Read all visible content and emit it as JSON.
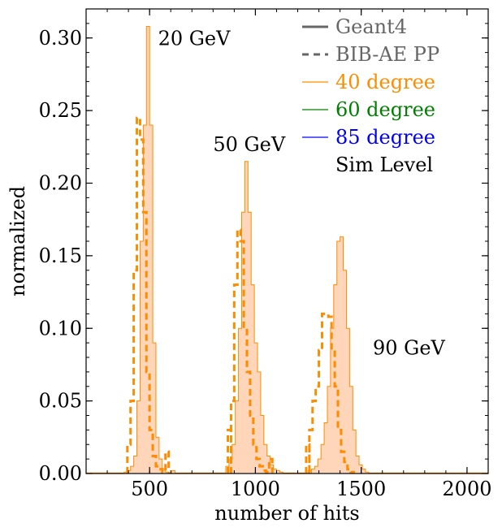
{
  "chart_data": {
    "type": "histogram",
    "title": "",
    "xlabel": "number of hits",
    "ylabel": "normalized",
    "xlim": [
      200,
      2100
    ],
    "ylim": [
      0,
      0.32
    ],
    "xticks": [
      500,
      1000,
      1500,
      2000
    ],
    "xtick_labels": [
      "500",
      "1000",
      "1500",
      "2000"
    ],
    "yticks": [
      0.0,
      0.05,
      0.1,
      0.15,
      0.2,
      0.25,
      0.3
    ],
    "ytick_labels": [
      "0.00",
      "0.05",
      "0.10",
      "0.15",
      "0.20",
      "0.25",
      "0.30"
    ],
    "grid": false,
    "legend_position": "top-right",
    "annotations": [
      {
        "text": "20 GeV",
        "x": 540,
        "y": 0.295
      },
      {
        "text": "50 GeV",
        "x": 800,
        "y": 0.222
      },
      {
        "text": "90 GeV",
        "x": 1555,
        "y": 0.082
      }
    ],
    "legend": [
      {
        "label": "Geant4",
        "style": "solid",
        "color": "#666666"
      },
      {
        "label": "BIB-AE PP",
        "style": "dashed",
        "color": "#666666"
      },
      {
        "label": "40 degree",
        "style": "solid",
        "color": "#ff8c00"
      },
      {
        "label": "60 degree",
        "style": "solid",
        "color": "#008000"
      },
      {
        "label": "85 degree",
        "style": "solid",
        "color": "#0000ff"
      },
      {
        "label": "Sim Level",
        "style": "none",
        "color": "#000000"
      }
    ],
    "series": [
      {
        "name": "Geant4 40 degree",
        "style": "filled-step",
        "color": "#ff8c00",
        "fill": "#ffd6ba",
        "bin_edges": [
          380,
          395,
          410,
          425,
          440,
          455,
          470,
          485,
          500,
          515,
          530,
          545,
          560,
          575,
          590,
          605,
          860,
          875,
          890,
          905,
          920,
          935,
          950,
          965,
          980,
          995,
          1010,
          1025,
          1040,
          1055,
          1070,
          1085,
          1100,
          1115,
          1130,
          1250,
          1265,
          1280,
          1295,
          1310,
          1325,
          1340,
          1355,
          1370,
          1385,
          1400,
          1415,
          1430,
          1445,
          1460,
          1475,
          1490,
          1505,
          1520,
          1535,
          1550
        ],
        "values": [
          0.001,
          0.002,
          0.005,
          0.012,
          0.05,
          0.16,
          0.24,
          0.308,
          0.24,
          0.09,
          0.025,
          0.01,
          0.003,
          0.001,
          0.0005,
          0.002,
          0.005,
          0.01,
          0.02,
          0.05,
          0.1,
          0.18,
          0.215,
          0.18,
          0.13,
          0.09,
          0.07,
          0.04,
          0.02,
          0.012,
          0.006,
          0.003,
          0.002,
          0.001,
          0.0,
          0.002,
          0.003,
          0.005,
          0.01,
          0.02,
          0.035,
          0.06,
          0.1,
          0.13,
          0.16,
          0.163,
          0.14,
          0.1,
          0.06,
          0.03,
          0.012,
          0.006,
          0.003,
          0.001,
          0.0
        ]
      },
      {
        "name": "BIB-AE PP 40 degree",
        "style": "dashed-step",
        "color": "#ff8c00",
        "bin_edges": [
          395,
          410,
          425,
          440,
          455,
          470,
          485,
          500,
          515,
          530,
          545,
          560,
          575,
          870,
          885,
          900,
          915,
          930,
          945,
          960,
          975,
          990,
          1005,
          1020,
          1035,
          1050,
          1065,
          1240,
          1255,
          1270,
          1285,
          1300,
          1315,
          1330,
          1345,
          1360,
          1375,
          1390,
          1405,
          1420,
          1435,
          1450,
          1465
        ],
        "values": [
          0.02,
          0.05,
          0.14,
          0.245,
          0.23,
          0.18,
          0.07,
          0.03,
          0.012,
          0.005,
          0.003,
          0.001,
          0.015,
          0.03,
          0.05,
          0.13,
          0.168,
          0.16,
          0.1,
          0.07,
          0.04,
          0.02,
          0.01,
          0.005,
          0.002,
          0.001,
          0.01,
          0.02,
          0.03,
          0.05,
          0.06,
          0.085,
          0.11,
          0.11,
          0.108,
          0.085,
          0.06,
          0.03,
          0.015,
          0.008,
          0.003,
          0.001
        ]
      }
    ]
  }
}
